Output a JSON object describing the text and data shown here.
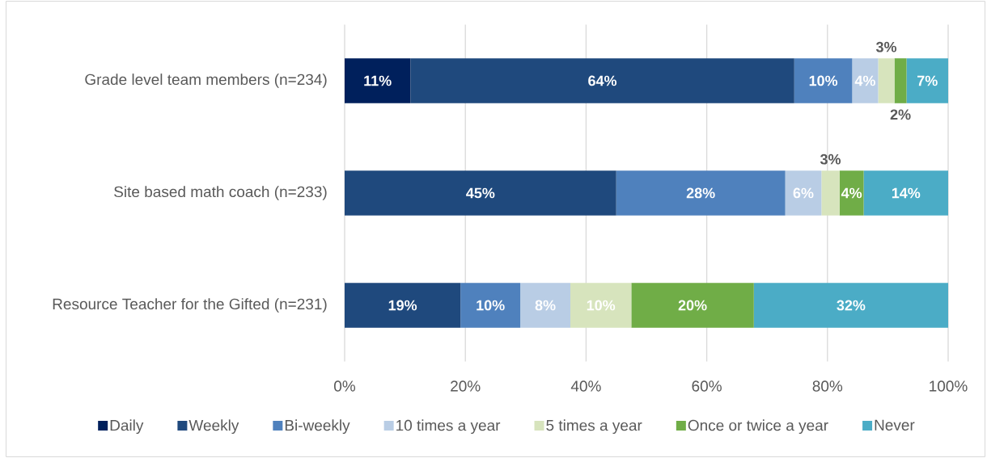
{
  "chart_data": {
    "type": "bar",
    "orientation": "horizontal",
    "stacked": true,
    "categories": [
      "Grade level team members (n=234)",
      "Site based math coach (n=233)",
      "Resource Teacher for the Gifted (n=231)"
    ],
    "series": [
      {
        "name": "Daily",
        "color": "#00205c",
        "values": [
          10.9,
          null,
          null
        ],
        "value_labels": [
          "11%",
          null,
          null
        ]
      },
      {
        "name": "Weekly",
        "color": "#1f497d",
        "values": [
          63.6,
          45,
          19.2
        ],
        "value_labels": [
          "64%",
          "45%",
          "19%"
        ]
      },
      {
        "name": "Bi-weekly",
        "color": "#4f81bd",
        "values": [
          9.6,
          28,
          9.9
        ],
        "value_labels": [
          "10%",
          "28%",
          "10%"
        ]
      },
      {
        "name": "10 times a year",
        "color": "#b9cde5",
        "values": [
          4.3,
          6,
          8.3
        ],
        "value_labels": [
          "4%",
          "6%",
          "8%"
        ]
      },
      {
        "name": "5 times a year",
        "color": "#d7e4bd",
        "values": [
          2.7,
          3,
          10.1
        ],
        "value_labels": [
          "3%",
          "3%",
          "10%"
        ]
      },
      {
        "name": "Once or twice a year",
        "color": "#70ad47",
        "values": [
          2.0,
          4,
          20.3
        ],
        "value_labels": [
          "2%",
          "4%",
          "20%"
        ]
      },
      {
        "name": "Never",
        "color": "#4bacc6",
        "values": [
          6.9,
          14,
          32.2
        ],
        "value_labels": [
          "7%",
          "14%",
          "32%"
        ]
      }
    ],
    "xlim": [
      0,
      100
    ],
    "xticks": [
      {
        "value": 0,
        "label": "0%"
      },
      {
        "value": 20,
        "label": "20%"
      },
      {
        "value": 40,
        "label": "40%"
      },
      {
        "value": 60,
        "label": "60%"
      },
      {
        "value": 80,
        "label": "80%"
      },
      {
        "value": 100,
        "label": "100%"
      }
    ],
    "grid": "x",
    "legend": "bottom"
  }
}
